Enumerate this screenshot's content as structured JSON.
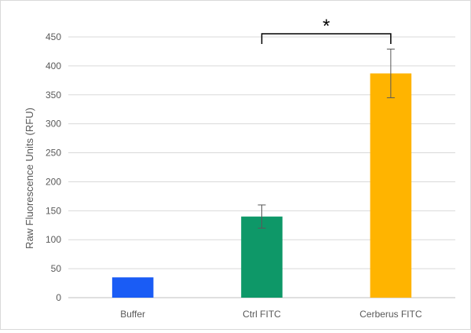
{
  "chart_data": {
    "type": "bar",
    "title": "",
    "xlabel": "",
    "ylabel": "Raw Fluorescence Units (RFU)",
    "categories": [
      "Buffer",
      "Ctrl FITC",
      "Cerberus FITC"
    ],
    "values": [
      35,
      140,
      387
    ],
    "error": [
      null,
      20,
      42
    ],
    "colors": [
      "#1a5cf5",
      "#0e9868",
      "#ffb400"
    ],
    "ylim": [
      0,
      450
    ],
    "yticks": [
      "0",
      "50",
      "100",
      "150",
      "200",
      "250",
      "300",
      "350",
      "400",
      "450"
    ],
    "grid": true,
    "legend": "none",
    "annotation": {
      "text": "*",
      "from": "Ctrl FITC",
      "to": "Cerberus FITC"
    }
  }
}
